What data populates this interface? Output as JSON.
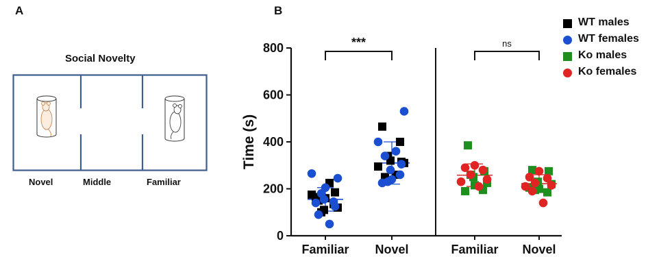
{
  "panel_a": {
    "letter": "A",
    "title": "Social Novelty",
    "chambers": [
      "Novel",
      "Middle",
      "Familiar"
    ],
    "colors": {
      "wall": "#3d5d8f"
    }
  },
  "panel_b": {
    "letter": "B"
  },
  "chart_data": {
    "type": "scatter",
    "ylabel": "Time (s)",
    "ylim": [
      0,
      800
    ],
    "yticks": [
      "0",
      "200",
      "400",
      "600",
      "800"
    ],
    "categories": [
      "Familiar",
      "Novel",
      "Familiar",
      "Novel"
    ],
    "grid": false,
    "legend_position": "top-right",
    "significance": [
      {
        "label": "***",
        "between": [
          0,
          1
        ]
      },
      {
        "label": "ns",
        "between": [
          2,
          3
        ]
      }
    ],
    "summary": [
      {
        "category": 0,
        "mean": 155,
        "sd": 50,
        "color": "#1a4fd1"
      },
      {
        "category": 1,
        "mean": 310,
        "sd": 90,
        "color": "#1a4fd1"
      },
      {
        "category": 2,
        "mean": 258,
        "sd": 48,
        "color": "#d62a2a"
      },
      {
        "category": 3,
        "mean": 222,
        "sd": 38,
        "color": "#d62a2a"
      }
    ],
    "series": [
      {
        "name": "WT males",
        "marker": "square",
        "color": "#000000",
        "points": [
          [
            0,
            165
          ],
          [
            0,
            135
          ],
          [
            0,
            100
          ],
          [
            0,
            120
          ],
          [
            0,
            175
          ],
          [
            0,
            225
          ],
          [
            0,
            150
          ],
          [
            0,
            185
          ],
          [
            0,
            110
          ],
          [
            0,
            160
          ],
          [
            1,
            465
          ],
          [
            1,
            400
          ],
          [
            1,
            340
          ],
          [
            1,
            310
          ],
          [
            1,
            295
          ],
          [
            1,
            260
          ],
          [
            1,
            250
          ],
          [
            1,
            315
          ],
          [
            1,
            320
          ]
        ]
      },
      {
        "name": "WT females",
        "marker": "circle",
        "color": "#1a4fd1",
        "points": [
          [
            0,
            245
          ],
          [
            0,
            265
          ],
          [
            0,
            50
          ],
          [
            0,
            90
          ],
          [
            0,
            125
          ],
          [
            0,
            155
          ],
          [
            0,
            205
          ],
          [
            0,
            140
          ],
          [
            0,
            145
          ],
          [
            0,
            180
          ],
          [
            1,
            530
          ],
          [
            1,
            400
          ],
          [
            1,
            360
          ],
          [
            1,
            340
          ],
          [
            1,
            305
          ],
          [
            1,
            280
          ],
          [
            1,
            240
          ],
          [
            1,
            225
          ],
          [
            1,
            260
          ],
          [
            1,
            230
          ]
        ]
      },
      {
        "name": "Ko males",
        "marker": "square",
        "color": "#1e8f1e",
        "points": [
          [
            2,
            385
          ],
          [
            2,
            275
          ],
          [
            2,
            250
          ],
          [
            2,
            215
          ],
          [
            2,
            190
          ],
          [
            2,
            195
          ],
          [
            2,
            260
          ],
          [
            2,
            225
          ],
          [
            3,
            280
          ],
          [
            3,
            275
          ],
          [
            3,
            230
          ],
          [
            3,
            200
          ],
          [
            3,
            205
          ],
          [
            3,
            185
          ],
          [
            3,
            195
          ],
          [
            3,
            220
          ]
        ]
      },
      {
        "name": "Ko females",
        "marker": "circle",
        "color": "#e02424",
        "points": [
          [
            2,
            300
          ],
          [
            2,
            290
          ],
          [
            2,
            280
          ],
          [
            2,
            260
          ],
          [
            2,
            240
          ],
          [
            2,
            230
          ],
          [
            2,
            210
          ],
          [
            3,
            275
          ],
          [
            3,
            250
          ],
          [
            3,
            245
          ],
          [
            3,
            225
          ],
          [
            3,
            215
          ],
          [
            3,
            210
          ],
          [
            3,
            140
          ],
          [
            3,
            190
          ]
        ]
      }
    ]
  }
}
